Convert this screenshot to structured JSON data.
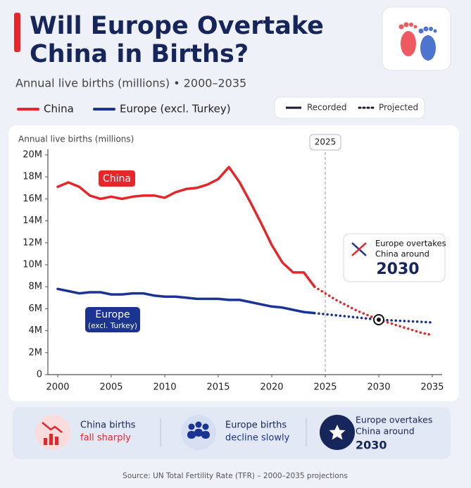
{
  "chart_data": {
    "type": "line",
    "title_lines": [
      "Will Europe Overtake",
      "China in Births?"
    ],
    "subtitle": "Annual live births (millions) • 2000–2035",
    "y_label": "Annual live births (millions)",
    "line_styles": [
      "Recorded",
      "Projected"
    ],
    "x": [
      2000,
      2001,
      2002,
      2003,
      2004,
      2005,
      2006,
      2007,
      2008,
      2009,
      2010,
      2011,
      2012,
      2013,
      2014,
      2015,
      2016,
      2017,
      2018,
      2019,
      2020,
      2021,
      2022,
      2023,
      2024,
      2025,
      2026,
      2027,
      2028,
      2029,
      2030,
      2031,
      2032,
      2033,
      2034,
      2035
    ],
    "series": [
      {
        "name": "China",
        "color": "#e5262b",
        "inline_label": "China",
        "values": [
          17.1,
          17.5,
          17.1,
          16.3,
          16.0,
          16.2,
          16.0,
          16.2,
          16.3,
          16.3,
          16.1,
          16.6,
          16.9,
          17.0,
          17.3,
          17.8,
          18.9,
          17.5,
          15.7,
          13.8,
          11.8,
          10.2,
          9.3,
          9.3,
          8.0,
          null,
          null,
          null,
          null,
          null,
          null,
          null,
          null,
          null,
          null,
          null
        ],
        "projected": [
          null,
          null,
          null,
          null,
          null,
          null,
          null,
          null,
          null,
          null,
          null,
          null,
          null,
          null,
          null,
          null,
          null,
          null,
          null,
          null,
          null,
          null,
          null,
          null,
          8.0,
          7.4,
          6.8,
          6.3,
          5.8,
          5.4,
          5.0,
          4.7,
          4.4,
          4.1,
          3.8,
          3.6
        ]
      },
      {
        "name": "Europe (excl. Turkey)",
        "color": "#1b3391",
        "inline_label": "Europe",
        "inline_sublabel": "(excl. Turkey)",
        "values": [
          7.8,
          7.6,
          7.4,
          7.5,
          7.5,
          7.3,
          7.3,
          7.4,
          7.4,
          7.2,
          7.1,
          7.1,
          7.0,
          6.9,
          6.9,
          6.9,
          6.8,
          6.8,
          6.6,
          6.4,
          6.2,
          6.1,
          5.9,
          5.7,
          5.6,
          null,
          null,
          null,
          null,
          null,
          null,
          null,
          null,
          null,
          null,
          null
        ],
        "projected": [
          null,
          null,
          null,
          null,
          null,
          null,
          null,
          null,
          null,
          null,
          null,
          null,
          null,
          null,
          null,
          null,
          null,
          null,
          null,
          null,
          null,
          null,
          null,
          null,
          5.6,
          5.5,
          5.4,
          5.3,
          5.2,
          5.1,
          5.0,
          4.95,
          4.9,
          4.85,
          4.8,
          4.75
        ]
      }
    ],
    "xlim": [
      2000,
      2035
    ],
    "xticks": [
      2000,
      2005,
      2010,
      2015,
      2020,
      2025,
      2030,
      2035
    ],
    "ylim": [
      0,
      20
    ],
    "yticks": [
      0,
      {
        "value": 2,
        "label": "2M"
      },
      {
        "value": 4,
        "label": "4M"
      },
      {
        "value": 6,
        "label": "6M"
      },
      {
        "value": 8,
        "label": "8M"
      },
      {
        "value": 10,
        "label": "10M"
      },
      {
        "value": 12,
        "label": "12M"
      },
      {
        "value": 14,
        "label": "14M"
      },
      {
        "value": 16,
        "label": "16M"
      },
      {
        "value": 18,
        "label": "18M"
      },
      {
        "value": 20,
        "label": "20M"
      }
    ],
    "grid": false,
    "divider": 2025,
    "crossover": {
      "x": 2030,
      "y": 5,
      "label": "Europe overtakes China around"
    },
    "source": "Source: UN Total Fertility Rate (TFR) – 2000–2035 projections"
  },
  "cards": [
    {
      "title": "China births",
      "detail": "fall sharply"
    },
    {
      "title": "Europe births",
      "detail": "decline slowly"
    },
    {
      "title_lines": [
        "Europe overtakes",
        "China around"
      ],
      "detail": "2030"
    }
  ]
}
